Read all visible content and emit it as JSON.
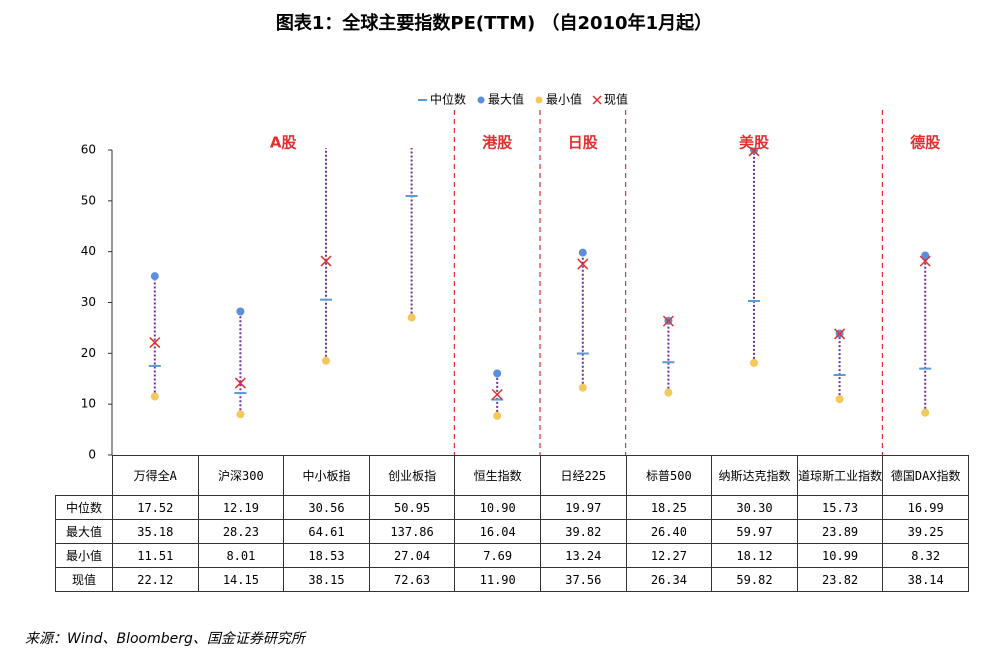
{
  "chart_data": {
    "type": "range-dot",
    "title": "图表1：全球主要指数PE(TTM) （自2010年1月起）",
    "categories": [
      "万得全A",
      "沪深300",
      "中小板指",
      "创业板指",
      "恒生指数",
      "日经225",
      "标普500",
      "纳斯达克指数",
      "道琼斯工业指数",
      "德国DAX指数"
    ],
    "groups": [
      {
        "label": "A股",
        "count": 4
      },
      {
        "label": "港股",
        "count": 1
      },
      {
        "label": "日股",
        "count": 1
      },
      {
        "label": "美股",
        "count": 3
      },
      {
        "label": "德股",
        "count": 1
      }
    ],
    "series": [
      {
        "name": "中位数",
        "color": "#5b9bd5",
        "marker": "dash",
        "values": [
          17.52,
          12.19,
          30.56,
          50.95,
          10.9,
          19.97,
          18.25,
          30.3,
          15.73,
          16.99
        ],
        "value_labels": [
          "17.52",
          "12.19",
          "30.56",
          "50.95",
          "10.90",
          "19.97",
          "18.25",
          "30.30",
          "15.73",
          "16.99"
        ]
      },
      {
        "name": "最大值",
        "color": "#5b8fdc",
        "marker": "circle",
        "values": [
          35.18,
          28.23,
          64.61,
          137.86,
          16.04,
          39.82,
          26.4,
          59.97,
          23.89,
          39.25
        ],
        "value_labels": [
          "35.18",
          "28.23",
          "64.61",
          "137.86",
          "16.04",
          "39.82",
          "26.40",
          "59.97",
          "23.89",
          "39.25"
        ]
      },
      {
        "name": "最小值",
        "color": "#f4c85a",
        "marker": "circle",
        "values": [
          11.51,
          8.01,
          18.53,
          27.04,
          7.69,
          13.24,
          12.27,
          18.12,
          10.99,
          8.32
        ],
        "value_labels": [
          "11.51",
          "8.01",
          "18.53",
          "27.04",
          "7.69",
          "13.24",
          "12.27",
          "18.12",
          "10.99",
          "8.32"
        ]
      },
      {
        "name": "现值",
        "color": "#e03030",
        "marker": "cross",
        "values": [
          22.12,
          14.15,
          38.15,
          72.63,
          11.9,
          37.56,
          26.34,
          59.82,
          23.82,
          38.14
        ],
        "value_labels": [
          "22.12",
          "14.15",
          "38.15",
          "72.63",
          "11.90",
          "37.56",
          "26.34",
          "59.82",
          "23.82",
          "38.14"
        ]
      }
    ],
    "range_color": "#7030a0",
    "separator_color": "#e03030",
    "ylim": [
      0,
      60
    ],
    "yticks": [
      0,
      10,
      20,
      30,
      40,
      50,
      60
    ],
    "source": "来源：Wind、Bloomberg、国金证券研究所"
  }
}
